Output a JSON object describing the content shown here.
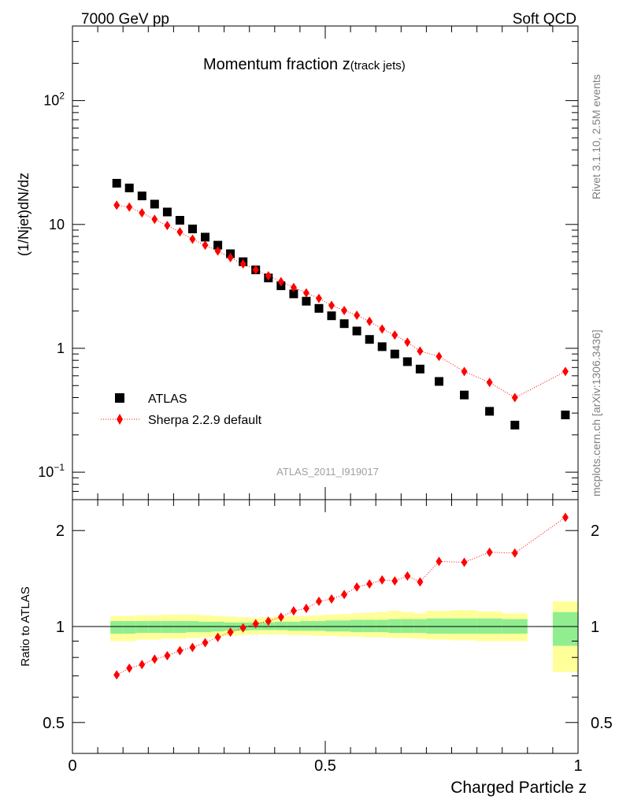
{
  "header": {
    "left_label": "7000 GeV pp",
    "right_label": "Soft QCD"
  },
  "side_labels": {
    "rivet": "Rivet 3.1.10,  2.5M events",
    "mcplots": "mcplots.cern.ch [arXiv:1306.3436]"
  },
  "chart_data": [
    {
      "type": "scatter",
      "panel": "main",
      "title_main": "Momentum fraction ",
      "title_var": "z",
      "title_sub": "(track jets)",
      "ylabel": "(1/Njet)dN/dz",
      "yscale": "log",
      "xlim": [
        0,
        1
      ],
      "ylim": [
        0.06,
        400
      ],
      "y_ticks": [
        {
          "value": 100,
          "label": "10",
          "exp": "2"
        },
        {
          "value": 10,
          "label": "10",
          "exp": ""
        },
        {
          "value": 1,
          "label": "1",
          "exp": ""
        },
        {
          "value": 0.1,
          "label": "10",
          "exp": "−1"
        }
      ],
      "analysis_id": "ATLAS_2011_I919017",
      "legend_position": "middle-left",
      "series": [
        {
          "name": "ATLAS",
          "marker": "square",
          "color": "#000000",
          "x": [
            0.0875,
            0.1125,
            0.1375,
            0.1625,
            0.1875,
            0.2125,
            0.2375,
            0.2625,
            0.2875,
            0.3125,
            0.3375,
            0.3625,
            0.3875,
            0.4125,
            0.4375,
            0.4625,
            0.4875,
            0.5125,
            0.5375,
            0.5625,
            0.5875,
            0.6125,
            0.6375,
            0.6625,
            0.6875,
            0.725,
            0.775,
            0.825,
            0.875,
            0.975
          ],
          "y": [
            21.5,
            19.7,
            17.0,
            14.6,
            12.6,
            10.8,
            9.2,
            7.9,
            6.8,
            5.8,
            5.0,
            4.3,
            3.7,
            3.2,
            2.75,
            2.4,
            2.1,
            1.83,
            1.58,
            1.38,
            1.18,
            1.03,
            0.9,
            0.78,
            0.68,
            0.54,
            0.42,
            0.31,
            0.24,
            0.29
          ]
        },
        {
          "name": "Sherpa 2.2.9 default",
          "marker": "diamond",
          "color": "#ff0000",
          "line": "dotted",
          "x": [
            0.0875,
            0.1125,
            0.1375,
            0.1625,
            0.1875,
            0.2125,
            0.2375,
            0.2625,
            0.2875,
            0.3125,
            0.3375,
            0.3625,
            0.3875,
            0.4125,
            0.4375,
            0.4625,
            0.4875,
            0.5125,
            0.5375,
            0.5625,
            0.5875,
            0.6125,
            0.6375,
            0.6625,
            0.6875,
            0.725,
            0.775,
            0.825,
            0.875,
            0.975
          ],
          "y": [
            14.3,
            13.8,
            12.4,
            11.0,
            9.8,
            8.7,
            7.6,
            6.8,
            6.1,
            5.4,
            4.8,
            4.3,
            3.85,
            3.45,
            3.1,
            2.8,
            2.53,
            2.22,
            2.02,
            1.85,
            1.65,
            1.43,
            1.28,
            1.12,
            0.95,
            0.86,
            0.65,
            0.53,
            0.4,
            0.65
          ]
        }
      ]
    },
    {
      "type": "scatter",
      "panel": "ratio",
      "ylabel": "Ratio to ATLAS",
      "xlabel": "Charged Particle z",
      "yscale": "log",
      "xlim": [
        0,
        1
      ],
      "ylim": [
        0.4,
        2.5
      ],
      "x_ticks": [
        {
          "value": 0,
          "label": "0"
        },
        {
          "value": 0.5,
          "label": "0.5"
        },
        {
          "value": 1,
          "label": "1"
        }
      ],
      "y_ticks": [
        {
          "value": 2,
          "label": "2"
        },
        {
          "value": 1,
          "label": "1"
        },
        {
          "value": 0.5,
          "label": "0.5"
        }
      ],
      "reference_line": 1,
      "bands": {
        "inner_color": "#90ee90",
        "outer_color": "#ffff99",
        "bins": [
          {
            "xlo": 0.075,
            "xhi": 0.1,
            "outer": [
              0.9,
              1.08
            ],
            "inner": [
              0.95,
              1.04
            ]
          },
          {
            "xlo": 0.1,
            "xhi": 0.125,
            "outer": [
              0.9,
              1.08
            ],
            "inner": [
              0.95,
              1.04
            ]
          },
          {
            "xlo": 0.125,
            "xhi": 0.15,
            "outer": [
              0.91,
              1.085
            ],
            "inner": [
              0.955,
              1.04
            ]
          },
          {
            "xlo": 0.15,
            "xhi": 0.175,
            "outer": [
              0.91,
              1.085
            ],
            "inner": [
              0.955,
              1.04
            ]
          },
          {
            "xlo": 0.175,
            "xhi": 0.2,
            "outer": [
              0.915,
              1.09
            ],
            "inner": [
              0.955,
              1.04
            ]
          },
          {
            "xlo": 0.2,
            "xhi": 0.225,
            "outer": [
              0.915,
              1.09
            ],
            "inner": [
              0.955,
              1.04
            ]
          },
          {
            "xlo": 0.225,
            "xhi": 0.25,
            "outer": [
              0.92,
              1.09
            ],
            "inner": [
              0.96,
              1.04
            ]
          },
          {
            "xlo": 0.25,
            "xhi": 0.275,
            "outer": [
              0.925,
              1.085
            ],
            "inner": [
              0.96,
              1.035
            ]
          },
          {
            "xlo": 0.275,
            "xhi": 0.3,
            "outer": [
              0.93,
              1.08
            ],
            "inner": [
              0.965,
              1.035
            ]
          },
          {
            "xlo": 0.3,
            "xhi": 0.325,
            "outer": [
              0.935,
              1.075
            ],
            "inner": [
              0.97,
              1.03
            ]
          },
          {
            "xlo": 0.325,
            "xhi": 0.35,
            "outer": [
              0.94,
              1.07
            ],
            "inner": [
              0.97,
              1.03
            ]
          },
          {
            "xlo": 0.35,
            "xhi": 0.375,
            "outer": [
              0.945,
              1.065
            ],
            "inner": [
              0.975,
              1.03
            ]
          },
          {
            "xlo": 0.375,
            "xhi": 0.4,
            "outer": [
              0.945,
              1.07
            ],
            "inner": [
              0.975,
              1.03
            ]
          },
          {
            "xlo": 0.4,
            "xhi": 0.425,
            "outer": [
              0.945,
              1.075
            ],
            "inner": [
              0.975,
              1.035
            ]
          },
          {
            "xlo": 0.425,
            "xhi": 0.45,
            "outer": [
              0.94,
              1.08
            ],
            "inner": [
              0.97,
              1.035
            ]
          },
          {
            "xlo": 0.45,
            "xhi": 0.475,
            "outer": [
              0.94,
              1.08
            ],
            "inner": [
              0.97,
              1.04
            ]
          },
          {
            "xlo": 0.475,
            "xhi": 0.5,
            "outer": [
              0.935,
              1.085
            ],
            "inner": [
              0.97,
              1.04
            ]
          },
          {
            "xlo": 0.5,
            "xhi": 0.525,
            "outer": [
              0.935,
              1.09
            ],
            "inner": [
              0.965,
              1.045
            ]
          },
          {
            "xlo": 0.525,
            "xhi": 0.55,
            "outer": [
              0.93,
              1.095
            ],
            "inner": [
              0.965,
              1.045
            ]
          },
          {
            "xlo": 0.55,
            "xhi": 0.575,
            "outer": [
              0.93,
              1.1
            ],
            "inner": [
              0.96,
              1.05
            ]
          },
          {
            "xlo": 0.575,
            "xhi": 0.6,
            "outer": [
              0.925,
              1.105
            ],
            "inner": [
              0.96,
              1.05
            ]
          },
          {
            "xlo": 0.6,
            "xhi": 0.625,
            "outer": [
              0.925,
              1.11
            ],
            "inner": [
              0.96,
              1.05
            ]
          },
          {
            "xlo": 0.625,
            "xhi": 0.65,
            "outer": [
              0.92,
              1.12
            ],
            "inner": [
              0.955,
              1.055
            ]
          },
          {
            "xlo": 0.65,
            "xhi": 0.675,
            "outer": [
              0.92,
              1.11
            ],
            "inner": [
              0.955,
              1.055
            ]
          },
          {
            "xlo": 0.675,
            "xhi": 0.7,
            "outer": [
              0.915,
              1.1
            ],
            "inner": [
              0.955,
              1.055
            ]
          },
          {
            "xlo": 0.7,
            "xhi": 0.75,
            "outer": [
              0.91,
              1.12
            ],
            "inner": [
              0.95,
              1.06
            ]
          },
          {
            "xlo": 0.75,
            "xhi": 0.8,
            "outer": [
              0.905,
              1.125
            ],
            "inner": [
              0.95,
              1.06
            ]
          },
          {
            "xlo": 0.8,
            "xhi": 0.85,
            "outer": [
              0.9,
              1.115
            ],
            "inner": [
              0.95,
              1.06
            ]
          },
          {
            "xlo": 0.85,
            "xhi": 0.9,
            "outer": [
              0.9,
              1.1
            ],
            "inner": [
              0.95,
              1.055
            ]
          },
          {
            "xlo": 0.95,
            "xhi": 1.0,
            "outer": [
              0.72,
              1.2
            ],
            "inner": [
              0.87,
              1.11
            ]
          }
        ]
      },
      "series": [
        {
          "name": "Sherpa 2.2.9 default / ATLAS",
          "marker": "diamond",
          "color": "#ff0000",
          "line": "dotted",
          "x": [
            0.0875,
            0.1125,
            0.1375,
            0.1625,
            0.1875,
            0.2125,
            0.2375,
            0.2625,
            0.2875,
            0.3125,
            0.3375,
            0.3625,
            0.3875,
            0.4125,
            0.4375,
            0.4625,
            0.4875,
            0.5125,
            0.5375,
            0.5625,
            0.5875,
            0.6125,
            0.6375,
            0.6625,
            0.6875,
            0.725,
            0.775,
            0.825,
            0.875,
            0.975
          ],
          "y": [
            0.705,
            0.74,
            0.76,
            0.79,
            0.81,
            0.84,
            0.86,
            0.89,
            0.925,
            0.96,
            0.99,
            1.02,
            1.04,
            1.07,
            1.12,
            1.14,
            1.2,
            1.22,
            1.26,
            1.33,
            1.36,
            1.4,
            1.39,
            1.44,
            1.38,
            1.6,
            1.59,
            1.71,
            1.7,
            2.2
          ]
        }
      ]
    }
  ]
}
